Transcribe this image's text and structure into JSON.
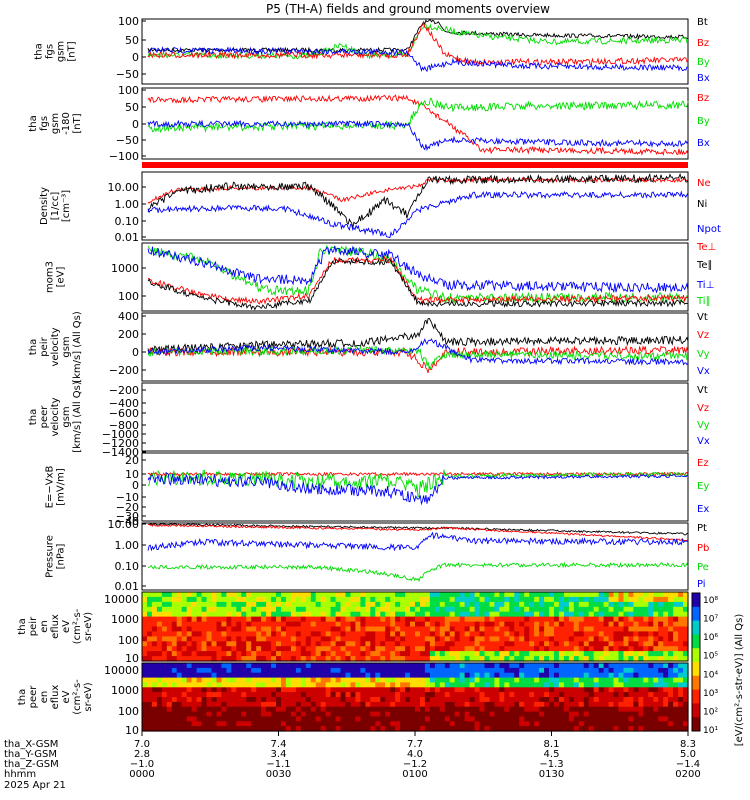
{
  "title": "P5 (TH-A) fields and ground moments overview",
  "colors": {
    "black": "#000000",
    "red": "#ff0000",
    "green": "#00dd00",
    "blue": "#0000ff"
  },
  "panels": [
    {
      "id": "p1",
      "ylabel": [
        "tha",
        "fgs",
        "gsm",
        "[nT]"
      ],
      "yticks": [
        "100",
        "50",
        "0",
        "−50"
      ],
      "legend": [
        "Bt",
        "Bz",
        "By",
        "Bx"
      ],
      "ylim": [
        -85,
        105
      ]
    },
    {
      "id": "p2",
      "ylabel": [
        "tha",
        "fgs",
        "gsm",
        "-180",
        "[nT]"
      ],
      "yticks": [
        "100",
        "50",
        "0",
        "−50",
        "−100"
      ],
      "legend": [
        "Bz",
        "By",
        "Bx"
      ],
      "ylim": [
        -125,
        105
      ]
    },
    {
      "id": "p4",
      "ylabel": [
        "Density",
        "[1/cc]",
        "[cm⁻³]"
      ],
      "yticks": [
        "10.00",
        "1.00",
        "0.10",
        "0.01"
      ],
      "legend": [
        "Ne",
        "Ni",
        "Npot"
      ],
      "ylim": [
        -2.5,
        1.7
      ],
      "log": true
    },
    {
      "id": "p5",
      "ylabel": [
        "mom3",
        "[eV]"
      ],
      "yticks": [
        "1000",
        "100"
      ],
      "legend": [
        "Te⊥",
        "Te∥",
        "Ti⊥",
        "Ti∥"
      ],
      "ylim": [
        1.5,
        3.6
      ],
      "log": true
    },
    {
      "id": "p6",
      "ylabel": [
        "tha",
        "peir",
        "velocity",
        "gsm",
        "[km/s] (All Qs)"
      ],
      "yticks": [
        "400",
        "200",
        "0",
        "−200"
      ],
      "legend": [
        "Vt",
        "Vz",
        "Vy",
        "Vx"
      ],
      "ylim": [
        -250,
        420
      ]
    },
    {
      "id": "p7",
      "ylabel": [
        "tha",
        "peer",
        "velocity",
        "gsm",
        "[km/s] (All Qs)"
      ],
      "yticks": [
        "−200",
        "−400",
        "−600",
        "−800",
        "−1000",
        "−1200",
        "−1400"
      ],
      "legend": [
        "Vt",
        "Vz",
        "Vy",
        "Vx"
      ],
      "ylim": [
        -1450,
        -150
      ]
    },
    {
      "id": "p8",
      "ylabel": [
        "E=−VxB",
        "[mV/m]"
      ],
      "yticks": [
        "20",
        "10",
        "0",
        "−10",
        "−20",
        "−30",
        "−40"
      ],
      "legend": [
        "Ez",
        "Ey",
        "Ex"
      ],
      "ylim": [
        -42,
        22
      ]
    },
    {
      "id": "p9",
      "ylabel": [
        "Pressure",
        "[nPa]"
      ],
      "yticks": [
        "10.00",
        "1.00",
        "0.10",
        "0.01"
      ],
      "legend": [
        "Pt",
        "Pb",
        "Pe",
        "Pi"
      ],
      "ylim": [
        -2.3,
        1.1
      ],
      "log": true
    },
    {
      "id": "p10",
      "ylabel": [
        "tha",
        "peir",
        "en",
        "eflux",
        "eV",
        "(cm²-s-",
        "sr-eV)"
      ],
      "yticks": [
        "10000",
        "1000",
        "100",
        "10"
      ],
      "legend": []
    },
    {
      "id": "p11",
      "ylabel": [
        "tha",
        "peer",
        "en",
        "eflux",
        "eV",
        "(cm²-s-",
        "sr-eV)"
      ],
      "yticks": [
        "10000",
        "1000",
        "100",
        "10"
      ],
      "legend": []
    }
  ],
  "colorbar": {
    "ticks": [
      "10⁸",
      "10⁷",
      "10⁶",
      "10⁵",
      "10⁴",
      "10³",
      "10²",
      "10¹"
    ],
    "label": "[eV/(cm²-s-str-eV)] (All Qs)"
  },
  "xaxis": {
    "rows": [
      {
        "label": "tha_X-GSM",
        "values": [
          "7.0",
          "7.4",
          "7.7",
          "8.1",
          "8.3"
        ]
      },
      {
        "label": "tha_Y-GSM",
        "values": [
          "2.8",
          "3.4",
          "4.0",
          "4.5",
          "5.0"
        ]
      },
      {
        "label": "tha_Z-GSM",
        "values": [
          "−1.0",
          "−1.1",
          "−1.2",
          "−1.3",
          "−1.4"
        ]
      },
      {
        "label": "hhmm",
        "values": [
          "0000",
          "0030",
          "0100",
          "0130",
          "0200"
        ]
      }
    ],
    "date": "2025 Apr 21"
  },
  "chart_data": {
    "type": "line",
    "title": "P5 (TH-A) fields and ground moments overview",
    "time_range": [
      "0000",
      "0200"
    ],
    "series": [
      {
        "name": "Bt",
        "panel": "p1",
        "values": [
          15,
          15,
          18,
          20,
          22,
          25,
          30,
          100,
          95,
          80,
          70,
          65,
          60,
          58
        ]
      },
      {
        "name": "Bz",
        "panel": "p1",
        "values": [
          0,
          0,
          2,
          3,
          5,
          5,
          8,
          80,
          50,
          30,
          20,
          15,
          10,
          10
        ]
      },
      {
        "name": "By",
        "panel": "p1",
        "values": [
          -5,
          -5,
          0,
          5,
          10,
          15,
          20,
          90,
          70,
          60,
          55,
          50,
          48,
          45
        ]
      },
      {
        "name": "Bx",
        "panel": "p1",
        "values": [
          15,
          15,
          10,
          5,
          0,
          -5,
          -10,
          -70,
          -40,
          -30,
          -25,
          -22,
          -20,
          -20
        ]
      },
      {
        "name": "Ne",
        "panel": "p4",
        "values": [
          5,
          8,
          10,
          12,
          15,
          5,
          8,
          20,
          22,
          22,
          22,
          22,
          22,
          22
        ]
      },
      {
        "name": "Ni",
        "panel": "p4",
        "values": [
          0.5,
          3,
          5,
          10,
          8,
          0.1,
          2,
          20,
          25,
          25,
          25,
          25,
          25,
          25
        ]
      }
    ]
  }
}
